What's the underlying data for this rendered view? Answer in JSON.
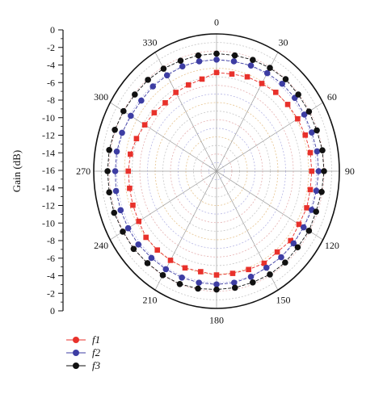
{
  "chart_data": {
    "type": "polar",
    "ylabel": "Gain (dB)",
    "r_range_db": [
      -16,
      0
    ],
    "angle_ticks": [
      "0",
      "30",
      "60",
      "90",
      "120",
      "150",
      "180",
      "210",
      "240",
      "270",
      "300",
      "330"
    ],
    "gain_ticks_upper": [
      "0",
      "-2",
      "-4",
      "-6",
      "-8",
      "-10",
      "-12",
      "-14",
      "-16"
    ],
    "gain_ticks_lower": [
      "-14",
      "-12",
      "-10",
      "-8",
      "-6",
      "-4",
      "-2",
      "0"
    ],
    "grid": true,
    "legend_position": "bottom-left",
    "series": [
      {
        "name": "f1",
        "color": "#e8312b",
        "marker": "square",
        "angles": [
          0,
          10,
          20,
          30,
          40,
          50,
          60,
          70,
          80,
          90,
          100,
          110,
          120,
          130,
          140,
          150,
          160,
          170,
          180,
          190,
          200,
          210,
          220,
          230,
          240,
          250,
          260,
          270,
          280,
          290,
          300,
          310,
          320,
          330,
          340,
          350
        ],
        "gain_db": [
          -4.5,
          -4.5,
          -4.3,
          -4.2,
          -4.0,
          -3.9,
          -3.8,
          -3.7,
          -3.6,
          -3.6,
          -3.6,
          -3.5,
          -3.6,
          -3.4,
          -3.7,
          -3.6,
          -3.8,
          -3.9,
          -3.9,
          -4.1,
          -4.0,
          -4.0,
          -4.0,
          -4.0,
          -4.3,
          -4.4,
          -4.5,
          -4.5,
          -4.6,
          -4.9,
          -5.2,
          -5.4,
          -5.6,
          -5.4,
          -5.3,
          -5.1
        ]
      },
      {
        "name": "f2",
        "color": "#3d3da3",
        "marker": "circle",
        "angles": [
          0,
          10,
          20,
          30,
          40,
          50,
          60,
          70,
          80,
          90,
          100,
          110,
          120,
          130,
          140,
          150,
          160,
          170,
          180,
          190,
          200,
          210,
          220,
          230,
          240,
          250,
          260,
          270,
          280,
          290,
          300,
          310,
          320,
          330,
          340,
          350
        ],
        "gain_db": [
          -3.0,
          -3.0,
          -2.9,
          -2.8,
          -2.7,
          -2.7,
          -2.8,
          -2.8,
          -2.7,
          -2.7,
          -2.8,
          -2.8,
          -2.9,
          -2.9,
          -2.9,
          -3.0,
          -2.9,
          -2.8,
          -2.8,
          -2.8,
          -2.8,
          -2.8,
          -2.8,
          -2.7,
          -2.7,
          -2.7,
          -2.7,
          -2.8,
          -2.8,
          -2.9,
          -3.1,
          -3.2,
          -3.1,
          -3.1,
          -3.0,
          -3.0
        ]
      },
      {
        "name": "f3",
        "color": "#111111",
        "marker": "circle",
        "angles": [
          0,
          10,
          20,
          30,
          40,
          50,
          60,
          70,
          80,
          90,
          100,
          110,
          120,
          130,
          140,
          150,
          160,
          170,
          180,
          190,
          200,
          210,
          220,
          230,
          240,
          250,
          260,
          270,
          280,
          290,
          300,
          310,
          320,
          330,
          340,
          350
        ],
        "gain_db": [
          -2.3,
          -2.3,
          -2.2,
          -2.1,
          -2.0,
          -2.1,
          -2.1,
          -2.1,
          -2.0,
          -2.0,
          -2.1,
          -2.2,
          -2.1,
          -2.2,
          -2.1,
          -2.1,
          -2.2,
          -2.2,
          -2.2,
          -2.1,
          -2.0,
          -2.0,
          -2.0,
          -1.9,
          -1.9,
          -1.8,
          -1.8,
          -1.8,
          -1.8,
          -1.9,
          -2.0,
          -2.1,
          -2.1,
          -2.2,
          -2.3,
          -2.3
        ]
      }
    ]
  }
}
